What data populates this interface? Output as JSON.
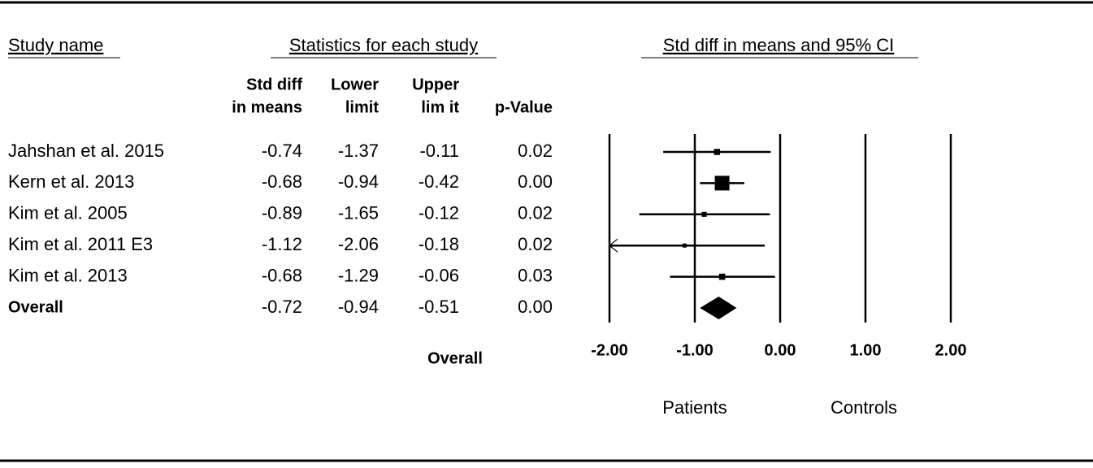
{
  "header": {
    "study_name": "Study name",
    "statistics": "Statistics for each study",
    "plot": "Std diff in means and 95% CI"
  },
  "columns": [
    [
      "Std diff",
      "in means"
    ],
    [
      "Lower",
      "limit"
    ],
    [
      "Upper",
      "lim it"
    ],
    [
      "p-Value"
    ]
  ],
  "chart_data": {
    "type": "forest",
    "categories": [
      "Jahshan et al. 2015",
      "Kern et al. 2013",
      "Kim et al. 2005",
      "Kim et al. 2011 E3",
      "Kim et al. 2013",
      "Overall"
    ],
    "values": [
      -0.74,
      -0.68,
      -0.89,
      -1.12,
      -0.68,
      -0.72
    ],
    "lower": [
      -1.37,
      -0.94,
      -1.65,
      -2.06,
      -1.29,
      -0.94
    ],
    "upper": [
      -0.11,
      -0.42,
      -0.12,
      -0.18,
      -0.06,
      -0.51
    ],
    "p_values": [
      "0.02",
      "0.00",
      "0.02",
      "0.02",
      "0.03",
      "0.00"
    ],
    "xlim": [
      -2,
      2
    ],
    "xticks": [
      {
        "value": -2,
        "label": "-2.00"
      },
      {
        "value": -1,
        "label": "-1.00"
      },
      {
        "value": 0,
        "label": "0.00"
      },
      {
        "value": 1,
        "label": "1.00"
      },
      {
        "value": 2,
        "label": "2.00"
      }
    ],
    "footer": "Overall",
    "left_label": "Patients",
    "right_label": "Controls"
  }
}
